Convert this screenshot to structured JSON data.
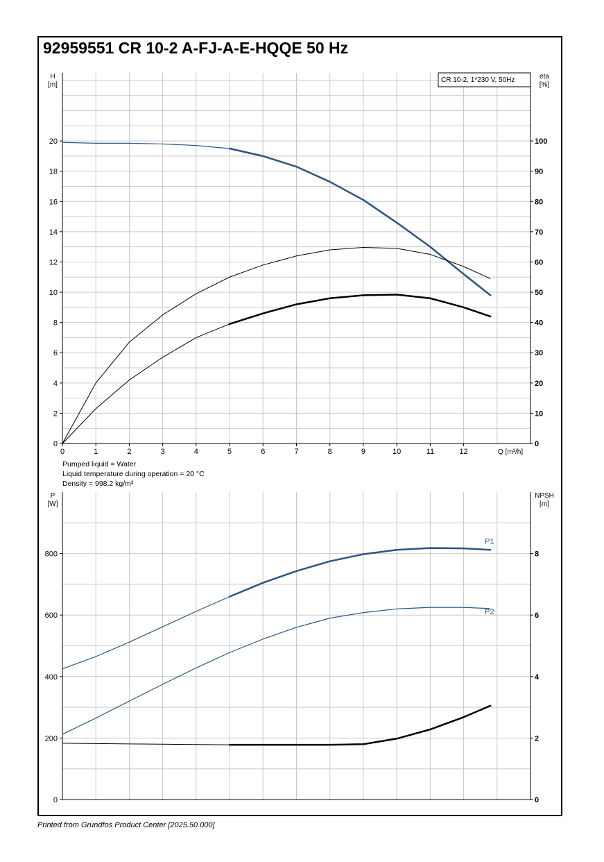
{
  "title": "92959551 CR 10-2 A-FJ-A-E-HQQE 50 Hz",
  "footer": "Printed from Grundfos Product Center [2025.50.000]",
  "colors": {
    "blue": "#2a5584",
    "black": "#000000",
    "grid": "#c8c8c8"
  },
  "notes": [
    "Pumped liquid = Water",
    "Liquid temperature during operation = 20 °C",
    "Density = 998.2 kg/m³"
  ],
  "chart_data": [
    {
      "type": "line",
      "legend_box": "CR 10-2, 1*230 V, 50Hz",
      "xlabel": "Q [m³/h]",
      "xlim": [
        0,
        14
      ],
      "x_ticks": [
        0,
        1,
        2,
        3,
        4,
        5,
        6,
        7,
        8,
        9,
        10,
        11,
        12
      ],
      "ylabel_left": [
        "H",
        "[m]"
      ],
      "ylabel_right": [
        "eta",
        "[%]"
      ],
      "ylim_left": [
        0,
        24.5
      ],
      "ylim_right": [
        0,
        122.5
      ],
      "y_ticks_left": [
        0,
        2,
        4,
        6,
        8,
        10,
        12,
        14,
        16,
        18,
        20
      ],
      "y_ticks_right": [
        0,
        10,
        20,
        30,
        40,
        50,
        60,
        70,
        80,
        90,
        100
      ],
      "grid": true,
      "series": [
        {
          "axis": "left",
          "color": "#2a5584",
          "bold_from": 5,
          "x": [
            0,
            1,
            2,
            3,
            4,
            5,
            6,
            7,
            8,
            9,
            10,
            11,
            12,
            12.8
          ],
          "y": [
            19.9,
            19.85,
            19.85,
            19.8,
            19.7,
            19.5,
            19.0,
            18.3,
            17.3,
            16.1,
            14.6,
            13.0,
            11.2,
            9.8
          ]
        },
        {
          "axis": "right",
          "color": "#000000",
          "bold_from": 99,
          "x": [
            0,
            1,
            2,
            3,
            4,
            5,
            6,
            7,
            8,
            9,
            10,
            11,
            12,
            12.8
          ],
          "y": [
            0,
            20,
            33.5,
            42.5,
            49.5,
            55,
            59,
            62,
            64,
            64.8,
            64.5,
            62.5,
            58.5,
            54.5
          ]
        },
        {
          "axis": "right",
          "color": "#000000",
          "bold_from": 5,
          "x": [
            0,
            1,
            2,
            3,
            4,
            5,
            6,
            7,
            8,
            9,
            10,
            11,
            12,
            12.8
          ],
          "y": [
            0,
            11.5,
            21,
            28.5,
            35,
            39.5,
            43,
            46,
            48,
            49,
            49.2,
            48,
            45,
            42
          ]
        }
      ]
    },
    {
      "type": "line",
      "ylabel_left": [
        "P",
        "[W]"
      ],
      "ylabel_right": [
        "NPSH",
        "[m]"
      ],
      "xlim": [
        0,
        14
      ],
      "ylim_left": [
        0,
        1000
      ],
      "ylim_right": [
        0,
        10
      ],
      "y_ticks_left": [
        0,
        200,
        400,
        600,
        800
      ],
      "y_ticks_right": [
        0,
        2,
        4,
        6,
        8
      ],
      "grid": true,
      "series": [
        {
          "name": "P1",
          "axis": "left",
          "color": "#2a5584",
          "bold_from": 5,
          "x": [
            0,
            1,
            2,
            3,
            4,
            5,
            6,
            7,
            8,
            9,
            10,
            11,
            12,
            12.8
          ],
          "y": [
            425,
            465,
            512,
            562,
            612,
            660,
            705,
            743,
            775,
            798,
            812,
            818,
            817,
            812
          ]
        },
        {
          "name": "P2",
          "axis": "left",
          "color": "#2a5584",
          "bold_from": 99,
          "x": [
            0,
            1,
            2,
            3,
            4,
            5,
            6,
            7,
            8,
            9,
            10,
            11,
            12,
            12.8
          ],
          "y": [
            212,
            265,
            320,
            375,
            428,
            478,
            522,
            560,
            590,
            608,
            620,
            625,
            625,
            621
          ]
        },
        {
          "axis": "right",
          "color": "#000000",
          "bold_from": 5,
          "x": [
            0,
            1,
            2,
            3,
            4,
            5,
            6,
            7,
            8,
            8.5,
            9,
            10,
            11,
            12,
            12.8
          ],
          "y": [
            1.83,
            1.82,
            1.81,
            1.8,
            1.79,
            1.78,
            1.78,
            1.78,
            1.78,
            1.79,
            1.8,
            1.98,
            2.28,
            2.68,
            3.05
          ]
        }
      ]
    }
  ]
}
